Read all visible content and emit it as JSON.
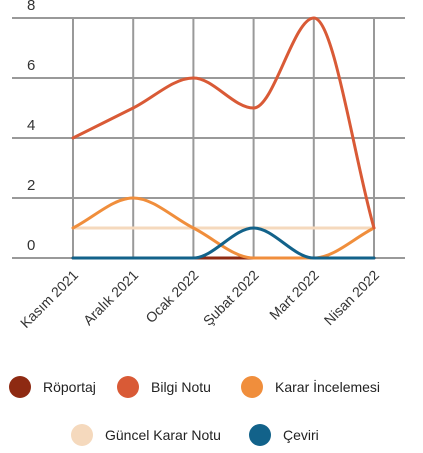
{
  "chart_data": {
    "type": "line",
    "categories": [
      "Kasım 2021",
      "Aralık 2021",
      "Ocak 2022",
      "Şubat 2022",
      "Mart 2022",
      "Nisan 2022"
    ],
    "series": [
      {
        "name": "Röportaj",
        "color": "#8e2a12",
        "values": [
          0,
          0,
          0,
          0,
          0,
          0
        ]
      },
      {
        "name": "Bilgi Notu",
        "color": "#d95a36",
        "values": [
          4,
          5,
          6,
          5,
          8,
          1
        ]
      },
      {
        "name": "Karar İncelemesi",
        "color": "#f08e3c",
        "values": [
          1,
          2,
          1,
          0,
          0,
          1
        ]
      },
      {
        "name": "Güncel Karar Notu",
        "color": "#f5d9bd",
        "values": [
          1,
          1,
          1,
          1,
          1,
          1
        ]
      },
      {
        "name": "Çeviri",
        "color": "#12628a",
        "values": [
          0,
          0,
          0,
          1,
          0,
          0
        ]
      }
    ],
    "y_ticks": [
      0,
      2,
      4,
      6,
      8
    ],
    "ylim": [
      0,
      8
    ],
    "grid": true,
    "smooth": true,
    "legend_position": "bottom"
  }
}
